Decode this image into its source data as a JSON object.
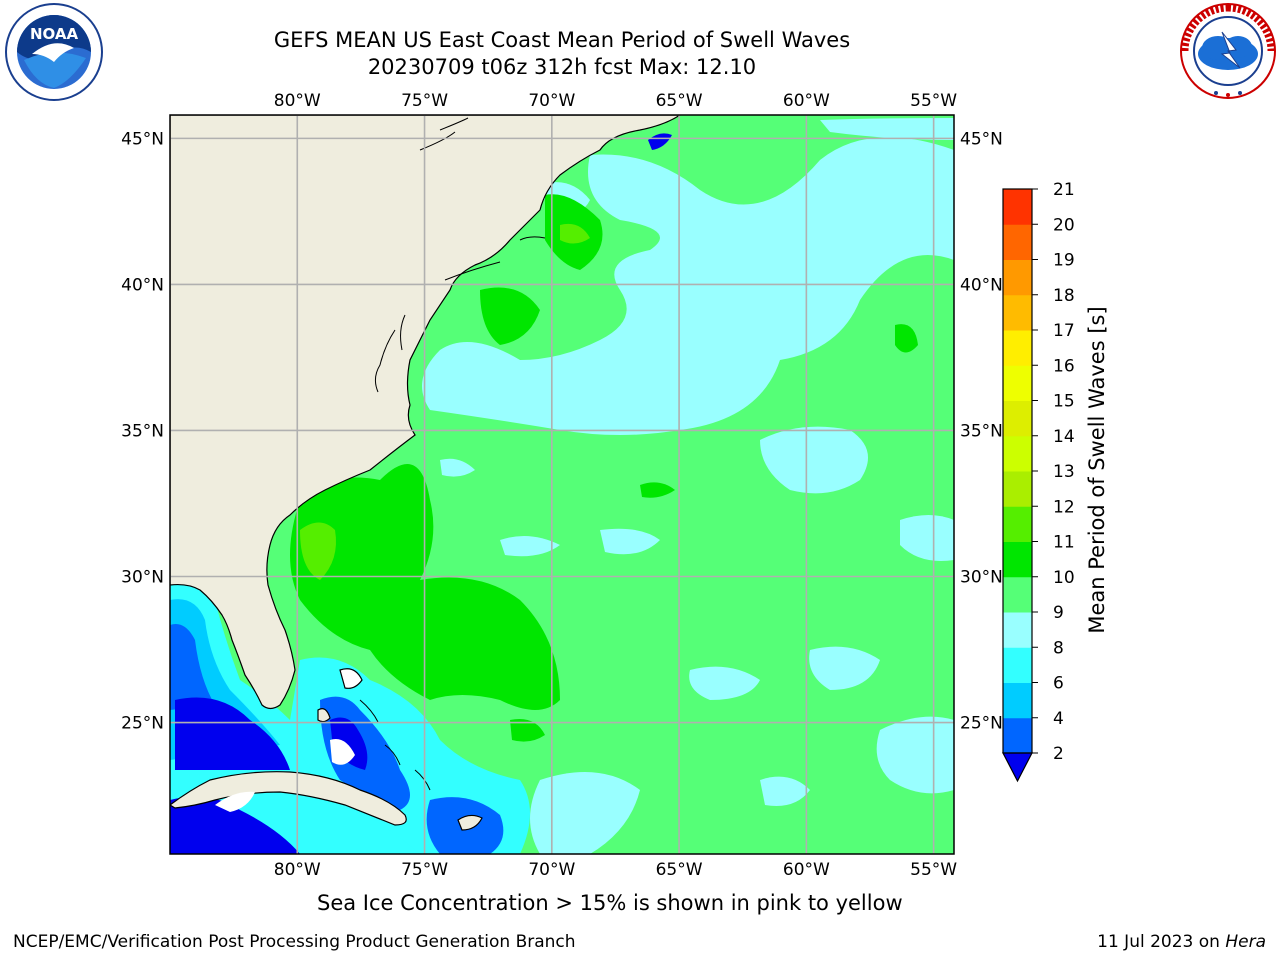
{
  "header": {
    "title_line1": "GEFS MEAN US East Coast Mean Period of Swell Waves",
    "title_line2": "20230709 t06z 312h fcst   Max: 12.10"
  },
  "logos": {
    "left": {
      "icon": "noaa-logo-icon",
      "text": "NOAA",
      "ring_text": "NATIONAL OCEANIC AND ATMOSPHERIC ADMINISTRATION · U.S. DEPARTMENT OF COMMERCE"
    },
    "right": {
      "icon": "nws-logo-icon",
      "ring_text": "NATIONAL WEATHER SERVICE"
    }
  },
  "map": {
    "lon_ticks_top": [
      "80°W",
      "75°W",
      "70°W",
      "65°W",
      "60°W",
      "55°W"
    ],
    "lon_ticks_bottom": [
      "80°W",
      "75°W",
      "70°W",
      "65°W",
      "60°W",
      "55°W"
    ],
    "lat_ticks_left": [
      "45°N",
      "40°N",
      "35°N",
      "30°N",
      "25°N"
    ],
    "lat_ticks_right": [
      "45°N",
      "40°N",
      "35°N",
      "30°N",
      "25°N"
    ],
    "lon_range": [
      -85,
      -54.2
    ],
    "lat_range": [
      20.5,
      45.8
    ],
    "lon_grid": [
      -80,
      -75,
      -70,
      -65,
      -60,
      -55
    ],
    "lat_grid": [
      45,
      40,
      35,
      30,
      25
    ],
    "colors": {
      "land": "#efedde",
      "grid": "#b0b0b0",
      "coast": "#000000"
    }
  },
  "colorbar": {
    "label": "Mean Period of Swell Waves [s]",
    "tick_labels": [
      "2",
      "4",
      "6",
      "8",
      "9",
      "10",
      "11",
      "12",
      "13",
      "14",
      "15",
      "16",
      "17",
      "18",
      "19",
      "20",
      "21"
    ],
    "levels": [
      2,
      4,
      6,
      8,
      9,
      10,
      11,
      12,
      13,
      14,
      15,
      16,
      17,
      18,
      19,
      20,
      21
    ],
    "colors": [
      "#0066ff",
      "#00ccff",
      "#33ffff",
      "#99ffff",
      "#55ff77",
      "#00e600",
      "#55ee00",
      "#aaee00",
      "#ccff00",
      "#ddee00",
      "#eeff00",
      "#ffee00",
      "#ffbb00",
      "#ff9900",
      "#ff6600",
      "#ff3300",
      "#ff0000"
    ],
    "extend_min_color": "#0000ee"
  },
  "footer": {
    "note": "Sea Ice Concentration > 15% is shown in pink to yellow",
    "credit": "NCEP/EMC/Verification Post Processing Product Generation Branch",
    "date": "11 Jul 2023 on ",
    "machine": "Hera"
  }
}
